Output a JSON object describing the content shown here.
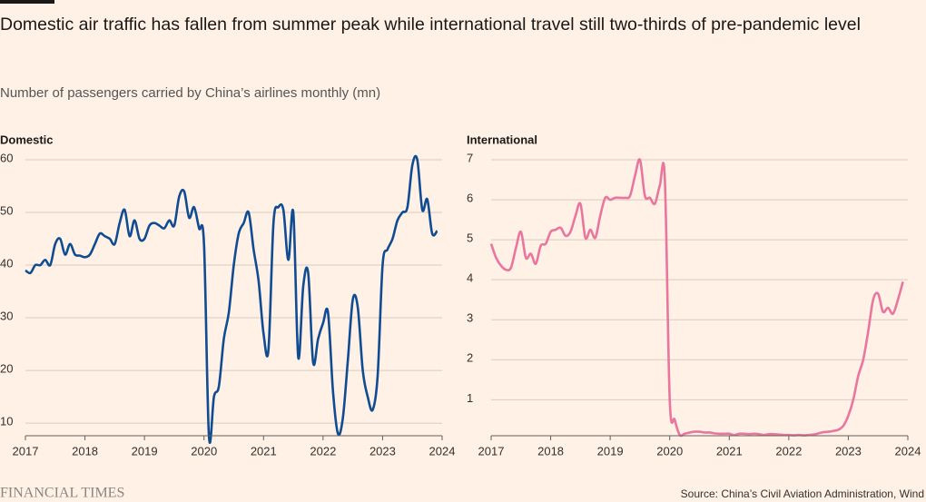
{
  "header": {
    "title": "Domestic air traffic has fallen from summer peak while international travel still two-thirds of pre-pandemic level",
    "subtitle": "Number of passengers carried by China’s airlines monthly (mn)"
  },
  "footer": {
    "logo": "FINANCIAL TIMES",
    "source": "Source: China’s Civil Aviation Administration, Wind"
  },
  "chart_data": [
    {
      "type": "line",
      "title": "Domestic",
      "color": "#0f4c92",
      "grid": true,
      "xlim": [
        2017,
        2024
      ],
      "xticks": [
        2017,
        2018,
        2019,
        2020,
        2021,
        2022,
        2023,
        2024
      ],
      "ylim": [
        7.6,
        61.9
      ],
      "yticks": [
        10,
        20,
        30,
        40,
        50,
        60
      ],
      "x": [
        2017,
        2017.083,
        2017.167,
        2017.25,
        2017.333,
        2017.417,
        2017.5,
        2017.583,
        2017.667,
        2017.75,
        2017.833,
        2017.917,
        2018,
        2018.083,
        2018.167,
        2018.25,
        2018.333,
        2018.417,
        2018.5,
        2018.583,
        2018.667,
        2018.75,
        2018.833,
        2018.917,
        2019,
        2019.083,
        2019.167,
        2019.25,
        2019.333,
        2019.417,
        2019.5,
        2019.583,
        2019.667,
        2019.75,
        2019.833,
        2019.917,
        2020,
        2020.083,
        2020.167,
        2020.25,
        2020.333,
        2020.417,
        2020.5,
        2020.583,
        2020.667,
        2020.75,
        2020.833,
        2020.917,
        2021,
        2021.083,
        2021.167,
        2021.25,
        2021.333,
        2021.417,
        2021.5,
        2021.583,
        2021.667,
        2021.75,
        2021.833,
        2021.917,
        2022,
        2022.083,
        2022.167,
        2022.25,
        2022.333,
        2022.417,
        2022.5,
        2022.583,
        2022.667,
        2022.75,
        2022.833,
        2022.917,
        2023,
        2023.083,
        2023.167,
        2023.25,
        2023.333,
        2023.417,
        2023.5,
        2023.583,
        2023.667,
        2023.75,
        2023.833,
        2023.917
      ],
      "values": [
        39,
        38.5,
        40,
        40,
        41,
        40,
        44,
        45,
        42,
        44,
        42,
        41.8,
        41.5,
        42,
        44,
        46,
        45.5,
        45,
        44,
        48,
        50.5,
        45.5,
        48.5,
        45,
        45,
        47.5,
        48,
        47.5,
        47,
        48.5,
        47.5,
        53,
        54,
        49,
        51,
        47,
        44,
        7.5,
        15,
        17,
        26,
        31,
        40,
        46,
        48,
        50,
        43,
        37,
        27,
        24,
        48,
        51,
        50.5,
        41,
        50,
        22.5,
        36,
        38.5,
        21.5,
        26,
        29,
        31,
        16,
        8,
        11,
        22,
        33.5,
        32,
        20,
        15,
        12.5,
        19,
        40,
        43,
        45,
        48.5,
        50,
        51,
        59,
        60,
        50.5,
        52.5,
        46,
        46.5
      ]
    },
    {
      "type": "line",
      "title": "International",
      "color": "#e8769f",
      "grid": true,
      "xlim": [
        2017,
        2024
      ],
      "xticks": [
        2017,
        2018,
        2019,
        2020,
        2021,
        2022,
        2023,
        2024
      ],
      "ylim": [
        0.1,
        7.25
      ],
      "yticks": [
        1,
        2,
        3,
        4,
        5,
        6,
        7
      ],
      "x": [
        2017,
        2017.083,
        2017.167,
        2017.25,
        2017.333,
        2017.417,
        2017.5,
        2017.583,
        2017.667,
        2017.75,
        2017.833,
        2017.917,
        2018,
        2018.083,
        2018.167,
        2018.25,
        2018.333,
        2018.417,
        2018.5,
        2018.583,
        2018.667,
        2018.75,
        2018.833,
        2018.917,
        2019,
        2019.083,
        2019.167,
        2019.25,
        2019.333,
        2019.417,
        2019.5,
        2019.583,
        2019.667,
        2019.75,
        2019.833,
        2019.917,
        2020,
        2020.083,
        2020.167,
        2020.25,
        2020.333,
        2020.417,
        2020.5,
        2020.583,
        2020.667,
        2020.75,
        2020.833,
        2020.917,
        2021,
        2021.083,
        2021.167,
        2021.25,
        2021.333,
        2021.417,
        2021.5,
        2021.583,
        2021.667,
        2021.75,
        2021.833,
        2021.917,
        2022,
        2022.083,
        2022.167,
        2022.25,
        2022.333,
        2022.417,
        2022.5,
        2022.583,
        2022.667,
        2022.75,
        2022.833,
        2022.917,
        2023,
        2023.083,
        2023.167,
        2023.25,
        2023.333,
        2023.417,
        2023.5,
        2023.583,
        2023.667,
        2023.75,
        2023.833,
        2023.917
      ],
      "values": [
        4.9,
        4.55,
        4.35,
        4.25,
        4.3,
        4.8,
        5.2,
        4.55,
        4.65,
        4.4,
        4.85,
        4.9,
        5.2,
        5.25,
        5.3,
        5.1,
        5.2,
        5.6,
        5.9,
        5.05,
        5.25,
        5.05,
        5.6,
        6.05,
        6,
        6.05,
        6.05,
        6.05,
        6.1,
        6.6,
        7,
        6.1,
        6.05,
        5.9,
        6.35,
        6.55,
        1,
        0.5,
        0.12,
        0.15,
        0.18,
        0.2,
        0.2,
        0.18,
        0.18,
        0.16,
        0.15,
        0.15,
        0.15,
        0.12,
        0.15,
        0.15,
        0.14,
        0.15,
        0.14,
        0.12,
        0.14,
        0.14,
        0.13,
        0.12,
        0.12,
        0.11,
        0.12,
        0.11,
        0.12,
        0.13,
        0.16,
        0.19,
        0.2,
        0.22,
        0.25,
        0.35,
        0.6,
        1,
        1.6,
        2,
        2.7,
        3.5,
        3.65,
        3.2,
        3.3,
        3.15,
        3.5,
        3.95
      ]
    }
  ]
}
